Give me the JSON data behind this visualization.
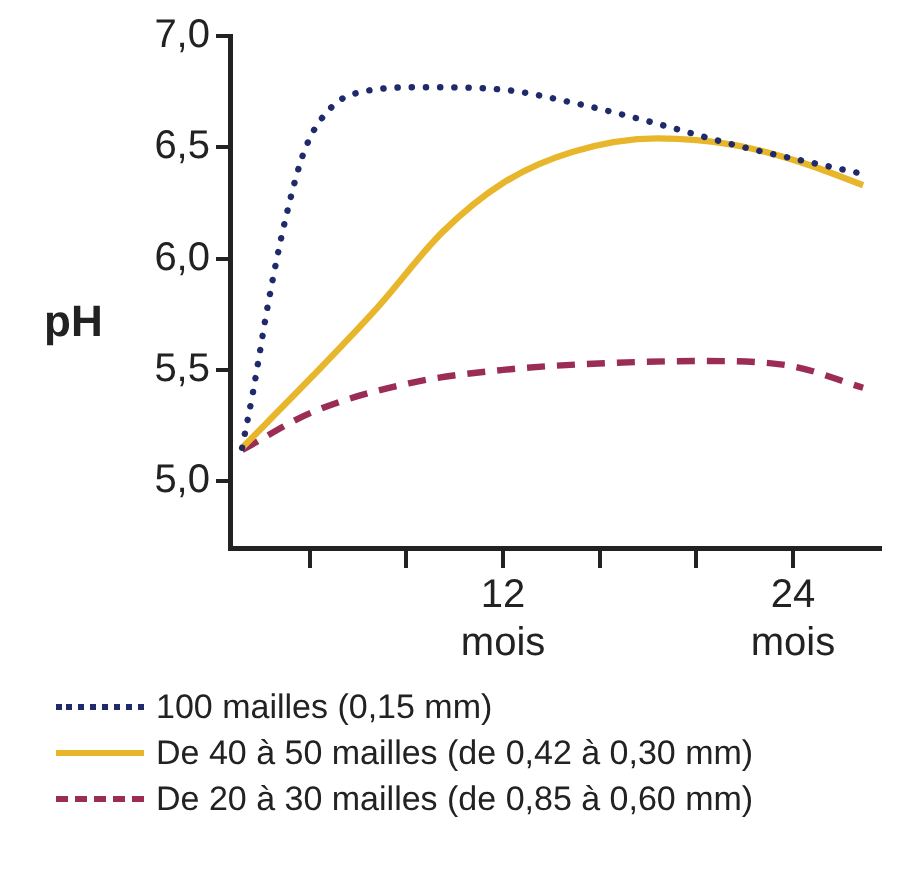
{
  "chart_data": {
    "type": "line",
    "ylabel": "pH",
    "xlim": [
      0.7,
      27.6
    ],
    "ylim": [
      4.7,
      7.0
    ],
    "xticks": [
      {
        "value": 4,
        "label": null
      },
      {
        "value": 8,
        "label": null
      },
      {
        "value": 12,
        "label": "12 mois"
      },
      {
        "value": 16,
        "label": null
      },
      {
        "value": 20,
        "label": null
      },
      {
        "value": 24,
        "label": "24 mois"
      }
    ],
    "yticks": [
      {
        "value": 5,
        "label": "5,0"
      },
      {
        "value": 5.5,
        "label": "5,5"
      },
      {
        "value": 6,
        "label": "6,0"
      },
      {
        "value": 6.5,
        "label": "6,5"
      },
      {
        "value": 7,
        "label": "7,0"
      }
    ],
    "grid": false,
    "legend": "bottom",
    "marker": "none",
    "series": [
      {
        "name": "100 mailles (0,15 mm)",
        "color": "#1f2a6b",
        "line_style": "dotted",
        "x": [
          1.2,
          1.65,
          2.3,
          3.0,
          3.8,
          4.9,
          6.2,
          8.7,
          11.9,
          14.9,
          17.9,
          21.6,
          26.9
        ],
        "values": [
          5.15,
          5.4,
          5.81,
          6.18,
          6.49,
          6.68,
          6.75,
          6.77,
          6.76,
          6.7,
          6.62,
          6.51,
          6.38
        ]
      },
      {
        "name": "De 40 à 50 mailles (de 0,42 à 0,30 mm)",
        "color": "#e8b62a",
        "line_style": "solid",
        "x": [
          1.2,
          4.1,
          6.8,
          9.5,
          12,
          14.9,
          18.4,
          21.6,
          24.4,
          26.9
        ],
        "values": [
          5.15,
          5.47,
          5.78,
          6.12,
          6.34,
          6.48,
          6.54,
          6.51,
          6.43,
          6.33
        ]
      },
      {
        "name": "De 20 à 30 mailles (de 0,85 à 0,60 mm)",
        "color": "#9b2c55",
        "line_style": "dashed",
        "x": [
          1.2,
          4.1,
          8.1,
          12,
          16.2,
          20.3,
          23.8,
          26.9
        ],
        "values": [
          5.14,
          5.31,
          5.44,
          5.5,
          5.53,
          5.54,
          5.52,
          5.42
        ]
      }
    ]
  }
}
